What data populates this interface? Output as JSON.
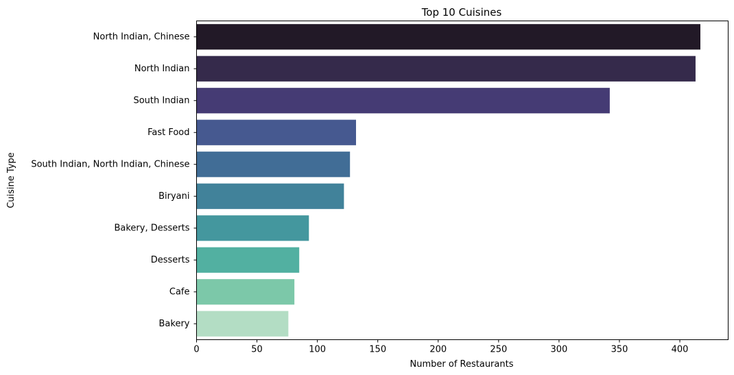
{
  "chart_data": {
    "type": "bar",
    "orientation": "horizontal",
    "title": "Top 10 Cuisines",
    "xlabel": "Number of Restaurants",
    "ylabel": "Cuisine Type",
    "categories": [
      "North Indian, Chinese",
      "North Indian",
      "South Indian",
      "Fast Food",
      "South Indian, North Indian, Chinese",
      "Biryani",
      "Bakery, Desserts",
      "Desserts",
      "Cafe",
      "Bakery"
    ],
    "values": [
      417,
      413,
      342,
      132,
      127,
      122,
      93,
      85,
      81,
      76
    ],
    "colors": [
      "#221927",
      "#352a4b",
      "#453b74",
      "#465990",
      "#416d96",
      "#41829a",
      "#44979e",
      "#52b0a1",
      "#7cc8a9",
      "#b3ddc4"
    ],
    "xlim": [
      0,
      440
    ],
    "xticks": [
      0,
      50,
      100,
      150,
      200,
      250,
      300,
      350,
      400
    ],
    "grid": false,
    "legend": "none"
  }
}
